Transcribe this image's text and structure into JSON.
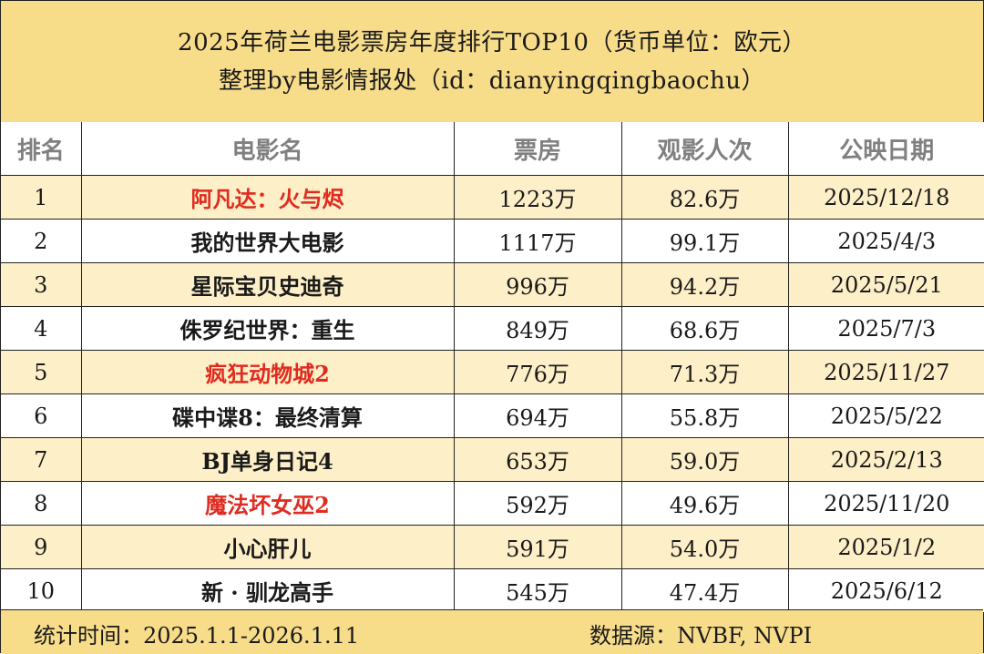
{
  "title": {
    "line1": "2025年荷兰电影票房年度排行TOP10（货币单位：欧元）",
    "line2": "整理by电影情报处（id：dianyingqingbaochu）"
  },
  "headers": [
    "排名",
    "电影名",
    "票房",
    "观影人次",
    "公映日期"
  ],
  "rows": [
    {
      "rank": "1",
      "title": "阿凡达：火与烬",
      "box_office": "1223万",
      "admissions": "82.6万",
      "release_date": "2025/12/18",
      "highlight": true,
      "shaded": true
    },
    {
      "rank": "2",
      "title": "我的世界大电影",
      "box_office": "1117万",
      "admissions": "99.1万",
      "release_date": "2025/4/3",
      "highlight": false,
      "shaded": false
    },
    {
      "rank": "3",
      "title": "星际宝贝史迪奇",
      "box_office": "996万",
      "admissions": "94.2万",
      "release_date": "2025/5/21",
      "highlight": false,
      "shaded": true
    },
    {
      "rank": "4",
      "title": "侏罗纪世界：重生",
      "box_office": "849万",
      "admissions": "68.6万",
      "release_date": "2025/7/3",
      "highlight": false,
      "shaded": false
    },
    {
      "rank": "5",
      "title": "疯狂动物城2",
      "box_office": "776万",
      "admissions": "71.3万",
      "release_date": "2025/11/27",
      "highlight": true,
      "shaded": true
    },
    {
      "rank": "6",
      "title": "碟中谍8：最终清算",
      "box_office": "694万",
      "admissions": "55.8万",
      "release_date": "2025/5/22",
      "highlight": false,
      "shaded": false
    },
    {
      "rank": "7",
      "title": "BJ单身日记4",
      "box_office": "653万",
      "admissions": "59.0万",
      "release_date": "2025/2/13",
      "highlight": false,
      "shaded": true
    },
    {
      "rank": "8",
      "title": "魔法坏女巫2",
      "box_office": "592万",
      "admissions": "49.6万",
      "release_date": "2025/11/20",
      "highlight": true,
      "shaded": false
    },
    {
      "rank": "9",
      "title": "小心肝儿",
      "box_office": "591万",
      "admissions": "54.0万",
      "release_date": "2025/1/2",
      "highlight": false,
      "shaded": true
    },
    {
      "rank": "10",
      "title": "新 · 驯龙高手",
      "box_office": "545万",
      "admissions": "47.4万",
      "release_date": "2025/6/12",
      "highlight": false,
      "shaded": false
    }
  ],
  "footer": {
    "period": "统计时间：2025.1.1-2026.1.11",
    "source": "数据源：NVBF, NVPI"
  },
  "colors": {
    "header_background": "#f7dc8a",
    "shaded_row": "#fdefc7",
    "highlight_text": "#e02b20",
    "column_header_text": "#808080"
  }
}
